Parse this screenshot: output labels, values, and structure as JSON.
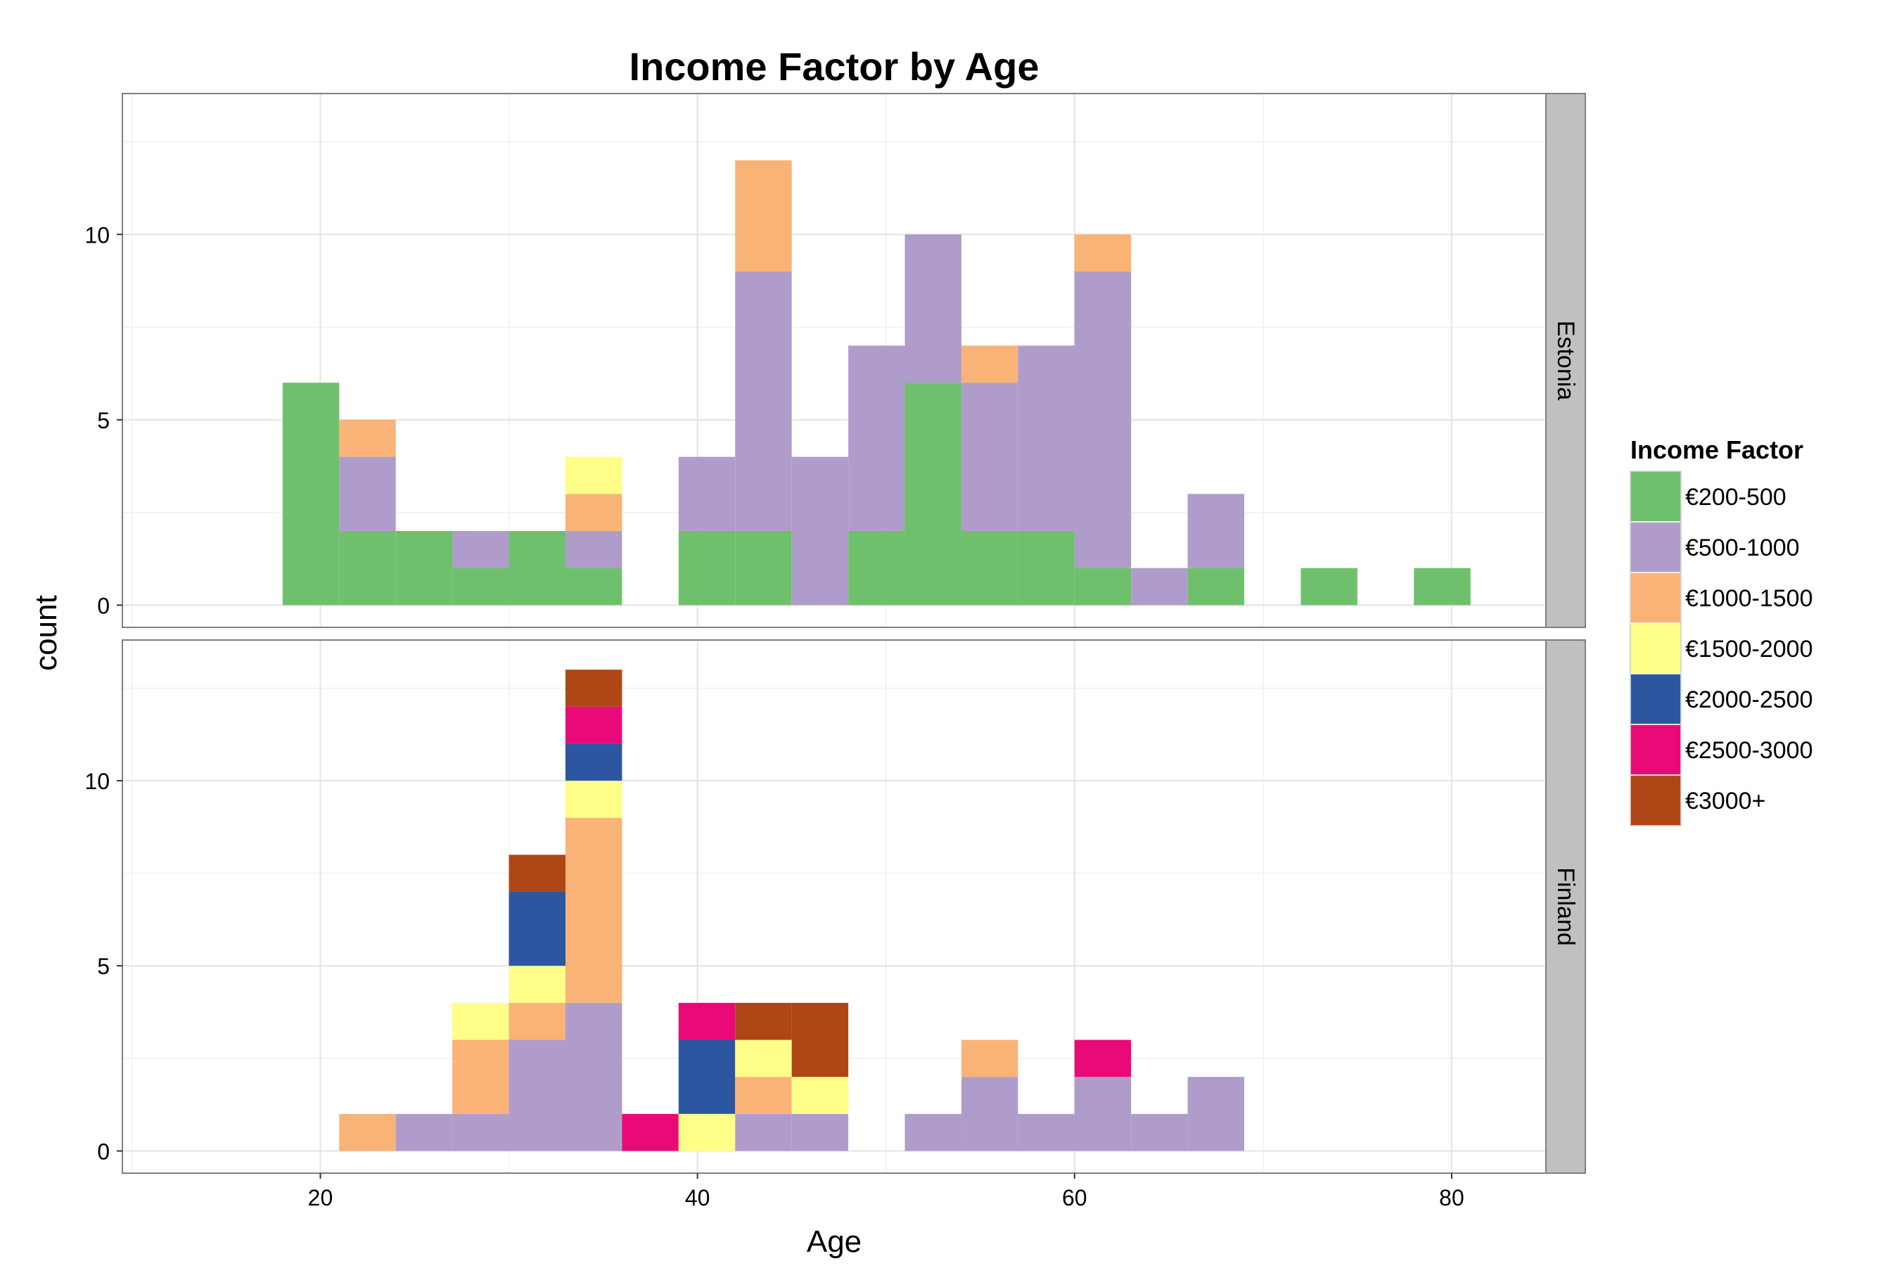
{
  "chart_data": {
    "type": "bar",
    "stacked": true,
    "title": "Income Factor by Age",
    "xlabel": "Age",
    "ylabel": "count",
    "xlim": [
      9.5,
      85
    ],
    "ylim": [
      -0.6,
      13.8
    ],
    "x_ticks": [
      20,
      40,
      60,
      80
    ],
    "y_ticks": [
      0,
      5,
      10
    ],
    "bin_width": 3,
    "grid": true,
    "legend": {
      "title": "Income Factor",
      "position": "right",
      "items": [
        {
          "label": "€200-500",
          "color": "#6fc06c"
        },
        {
          "label": "€500-1000",
          "color": "#af9ccb"
        },
        {
          "label": "€1000-1500",
          "color": "#f9b377"
        },
        {
          "label": "€1500-2000",
          "color": "#fffe88"
        },
        {
          "label": "€2000-2500",
          "color": "#2c57a0"
        },
        {
          "label": "€2500-3000",
          "color": "#e90a77"
        },
        {
          "label": "€3000+",
          "color": "#ae4715"
        }
      ]
    },
    "panels": [
      {
        "name": "Estonia",
        "bins": [
          {
            "x0": 18,
            "counts": [
              6,
              0,
              0,
              0,
              0,
              0,
              0
            ]
          },
          {
            "x0": 21,
            "counts": [
              2,
              2,
              1,
              0,
              0,
              0,
              0
            ]
          },
          {
            "x0": 24,
            "counts": [
              2,
              0,
              0,
              0,
              0,
              0,
              0
            ]
          },
          {
            "x0": 27,
            "counts": [
              1,
              1,
              0,
              0,
              0,
              0,
              0
            ]
          },
          {
            "x0": 30,
            "counts": [
              2,
              0,
              0,
              0,
              0,
              0,
              0
            ]
          },
          {
            "x0": 33,
            "counts": [
              1,
              1,
              1,
              1,
              0,
              0,
              0
            ]
          },
          {
            "x0": 39,
            "counts": [
              2,
              2,
              0,
              0,
              0,
              0,
              0
            ]
          },
          {
            "x0": 42,
            "counts": [
              2,
              7,
              3,
              0,
              0,
              0,
              0
            ]
          },
          {
            "x0": 45,
            "counts": [
              0,
              4,
              0,
              0,
              0,
              0,
              0
            ]
          },
          {
            "x0": 48,
            "counts": [
              2,
              5,
              0,
              0,
              0,
              0,
              0
            ]
          },
          {
            "x0": 51,
            "counts": [
              6,
              4,
              0,
              0,
              0,
              0,
              0
            ]
          },
          {
            "x0": 54,
            "counts": [
              2,
              4,
              1,
              0,
              0,
              0,
              0
            ]
          },
          {
            "x0": 57,
            "counts": [
              2,
              5,
              0,
              0,
              0,
              0,
              0
            ]
          },
          {
            "x0": 60,
            "counts": [
              1,
              8,
              1,
              0,
              0,
              0,
              0
            ]
          },
          {
            "x0": 63,
            "counts": [
              0,
              1,
              0,
              0,
              0,
              0,
              0
            ]
          },
          {
            "x0": 66,
            "counts": [
              1,
              2,
              0,
              0,
              0,
              0,
              0
            ]
          },
          {
            "x0": 72,
            "counts": [
              1,
              0,
              0,
              0,
              0,
              0,
              0
            ]
          },
          {
            "x0": 78,
            "counts": [
              1,
              0,
              0,
              0,
              0,
              0,
              0
            ]
          }
        ]
      },
      {
        "name": "Finland",
        "bins": [
          {
            "x0": 21,
            "counts": [
              0,
              0,
              1,
              0,
              0,
              0,
              0
            ]
          },
          {
            "x0": 24,
            "counts": [
              0,
              1,
              0,
              0,
              0,
              0,
              0
            ]
          },
          {
            "x0": 27,
            "counts": [
              0,
              1,
              2,
              1,
              0,
              0,
              0
            ]
          },
          {
            "x0": 30,
            "counts": [
              0,
              3,
              1,
              1,
              2,
              0,
              1
            ]
          },
          {
            "x0": 33,
            "counts": [
              0,
              4,
              5,
              1,
              1,
              1,
              1
            ]
          },
          {
            "x0": 36,
            "counts": [
              0,
              0,
              0,
              0,
              0,
              1,
              0
            ]
          },
          {
            "x0": 39,
            "counts": [
              0,
              0,
              0,
              1,
              2,
              1,
              0
            ]
          },
          {
            "x0": 42,
            "counts": [
              0,
              1,
              1,
              1,
              0,
              0,
              1
            ]
          },
          {
            "x0": 45,
            "counts": [
              0,
              1,
              0,
              1,
              0,
              0,
              2
            ]
          },
          {
            "x0": 51,
            "counts": [
              0,
              1,
              0,
              0,
              0,
              0,
              0
            ]
          },
          {
            "x0": 54,
            "counts": [
              0,
              2,
              1,
              0,
              0,
              0,
              0
            ]
          },
          {
            "x0": 57,
            "counts": [
              0,
              1,
              0,
              0,
              0,
              0,
              0
            ]
          },
          {
            "x0": 60,
            "counts": [
              0,
              2,
              0,
              0,
              0,
              1,
              0
            ]
          },
          {
            "x0": 63,
            "counts": [
              0,
              1,
              0,
              0,
              0,
              0,
              0
            ]
          },
          {
            "x0": 66,
            "counts": [
              0,
              2,
              0,
              0,
              0,
              0,
              0
            ]
          }
        ]
      }
    ]
  }
}
